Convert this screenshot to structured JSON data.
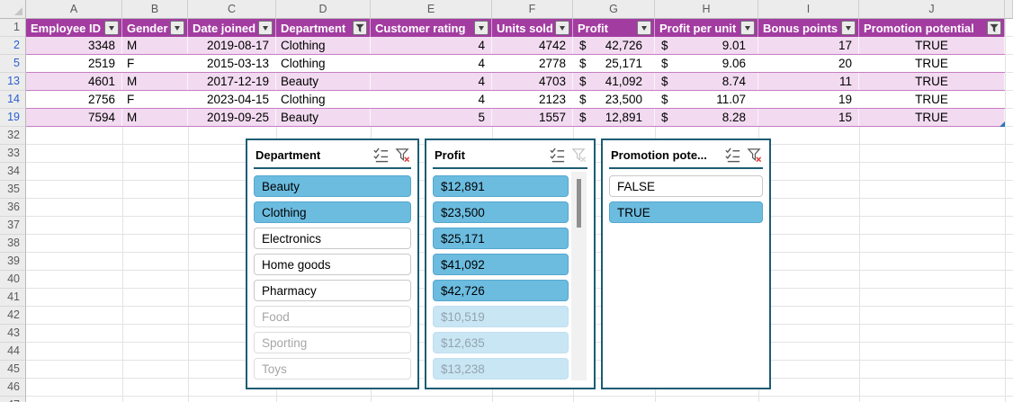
{
  "colors": {
    "table_header_purple": "#A33CA1",
    "banded_row_pink": "#F2DBF0",
    "table_row_border": "#C87DC4",
    "slicer_border_teal": "#1D5C74",
    "slicer_item_selected_blue": "#6CBCE0",
    "slicer_item_selected_nodata_blue": "#C9E6F5",
    "filtered_row_number_blue": "#2A5FD2",
    "clear_filter_x_red": "#E03A3A",
    "fill_handle_blue": "#2E75B6"
  },
  "spreadsheet": {
    "column_letters": [
      "A",
      "B",
      "C",
      "D",
      "E",
      "F",
      "G",
      "H",
      "I",
      "J"
    ],
    "row_headers": [
      {
        "n": "1",
        "filtered": false
      },
      {
        "n": "2",
        "filtered": true
      },
      {
        "n": "5",
        "filtered": true
      },
      {
        "n": "13",
        "filtered": true
      },
      {
        "n": "14",
        "filtered": true
      },
      {
        "n": "19",
        "filtered": true
      },
      {
        "n": "32",
        "filtered": false
      },
      {
        "n": "33",
        "filtered": false
      },
      {
        "n": "34",
        "filtered": false
      },
      {
        "n": "35",
        "filtered": false
      },
      {
        "n": "36",
        "filtered": false
      },
      {
        "n": "37",
        "filtered": false
      },
      {
        "n": "38",
        "filtered": false
      },
      {
        "n": "39",
        "filtered": false
      },
      {
        "n": "40",
        "filtered": false
      },
      {
        "n": "41",
        "filtered": false
      },
      {
        "n": "42",
        "filtered": false
      },
      {
        "n": "43",
        "filtered": false
      },
      {
        "n": "44",
        "filtered": false
      },
      {
        "n": "45",
        "filtered": false
      },
      {
        "n": "46",
        "filtered": false
      },
      {
        "n": "47",
        "filtered": false
      }
    ]
  },
  "table": {
    "headers": [
      {
        "label": "Employee ID",
        "filter_state": "dropdown"
      },
      {
        "label": "Gender",
        "filter_state": "dropdown"
      },
      {
        "label": "Date joined",
        "filter_state": "dropdown"
      },
      {
        "label": "Department",
        "filter_state": "filtered"
      },
      {
        "label": "Customer rating",
        "filter_state": "dropdown"
      },
      {
        "label": "Units sold",
        "filter_state": "dropdown"
      },
      {
        "label": "Profit",
        "filter_state": "dropdown"
      },
      {
        "label": "Profit per unit",
        "filter_state": "dropdown"
      },
      {
        "label": "Bonus points",
        "filter_state": "dropdown"
      },
      {
        "label": "Promotion potential",
        "filter_state": "filtered"
      }
    ],
    "rows": [
      {
        "row": "2",
        "banded": true,
        "cells": [
          "3348",
          "M",
          "2019-08-17",
          "Clothing",
          "4",
          "4742",
          {
            "cur": "$",
            "val": "42,726"
          },
          {
            "cur": "$",
            "val": "9.01"
          },
          "17",
          "TRUE"
        ]
      },
      {
        "row": "5",
        "banded": false,
        "cells": [
          "2519",
          "F",
          "2015-03-13",
          "Clothing",
          "4",
          "2778",
          {
            "cur": "$",
            "val": "25,171"
          },
          {
            "cur": "$",
            "val": "9.06"
          },
          "20",
          "TRUE"
        ]
      },
      {
        "row": "13",
        "banded": true,
        "cells": [
          "4601",
          "M",
          "2017-12-19",
          "Beauty",
          "4",
          "4703",
          {
            "cur": "$",
            "val": "41,092"
          },
          {
            "cur": "$",
            "val": "8.74"
          },
          "11",
          "TRUE"
        ]
      },
      {
        "row": "14",
        "banded": false,
        "cells": [
          "2756",
          "F",
          "2023-04-15",
          "Clothing",
          "4",
          "2123",
          {
            "cur": "$",
            "val": "23,500"
          },
          {
            "cur": "$",
            "val": "11.07"
          },
          "19",
          "TRUE"
        ]
      },
      {
        "row": "19",
        "banded": true,
        "cells": [
          "7594",
          "M",
          "2019-09-25",
          "Beauty",
          "5",
          "1557",
          {
            "cur": "$",
            "val": "12,891"
          },
          {
            "cur": "$",
            "val": "8.28"
          },
          "15",
          "TRUE"
        ]
      }
    ]
  },
  "slicers": [
    {
      "name": "Department",
      "display_title": "Department",
      "multi_select_enabled": true,
      "clear_filter_enabled": true,
      "scrollbar": false,
      "items": [
        {
          "label": "Beauty",
          "state": "selected"
        },
        {
          "label": "Clothing",
          "state": "selected"
        },
        {
          "label": "Electronics",
          "state": "unselected"
        },
        {
          "label": "Home goods",
          "state": "unselected"
        },
        {
          "label": "Pharmacy",
          "state": "unselected"
        },
        {
          "label": "Food",
          "state": "unselected-nodata"
        },
        {
          "label": "Sporting",
          "state": "unselected-nodata"
        },
        {
          "label": "Toys",
          "state": "unselected-nodata"
        }
      ]
    },
    {
      "name": "Profit",
      "display_title": "Profit",
      "multi_select_enabled": true,
      "clear_filter_enabled": false,
      "scrollbar": true,
      "items": [
        {
          "label": "$12,891",
          "state": "selected"
        },
        {
          "label": "$23,500",
          "state": "selected"
        },
        {
          "label": "$25,171",
          "state": "selected"
        },
        {
          "label": "$41,092",
          "state": "selected"
        },
        {
          "label": "$42,726",
          "state": "selected"
        },
        {
          "label": "$10,519",
          "state": "selected-nodata"
        },
        {
          "label": "$12,635",
          "state": "selected-nodata"
        },
        {
          "label": "$13,238",
          "state": "selected-nodata"
        }
      ]
    },
    {
      "name": "Promotion potential",
      "display_title": "Promotion pote...",
      "multi_select_enabled": true,
      "clear_filter_enabled": true,
      "scrollbar": false,
      "items": [
        {
          "label": "FALSE",
          "state": "unselected"
        },
        {
          "label": "TRUE",
          "state": "selected"
        }
      ]
    }
  ]
}
